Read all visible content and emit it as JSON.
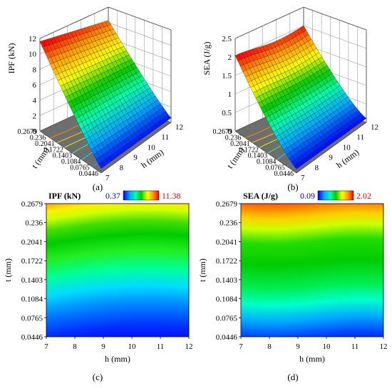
{
  "panels": {
    "a": "(a)",
    "b": "(b)",
    "c": "(c)",
    "d": "(d)"
  },
  "colors": {
    "jet": [
      "#0000ff",
      "#00aaff",
      "#00ffaa",
      "#00cc00",
      "#ffff00",
      "#ff9900",
      "#ff0000"
    ],
    "floor": "#6e6e6e",
    "min_text": "#0000cc",
    "max_text": "#ff0000"
  },
  "chart_data": [
    {
      "id": "a",
      "type": "surface3d",
      "zlabel": "IPF (kN)",
      "xlabel": "h (mm)",
      "ylabel": "t (mm)",
      "x_ticks": [
        "7",
        "8",
        "9",
        "10",
        "11",
        "12"
      ],
      "y_ticks": [
        "0.0446",
        "0.0765",
        "0.1084",
        "0.1403",
        "0.1722",
        "0.2041",
        "0.236",
        "0.2679"
      ],
      "z_ticks": [
        "0",
        "2",
        "4",
        "6",
        "8",
        "10",
        "12"
      ],
      "xlim": [
        7,
        12
      ],
      "ylim": [
        0.0446,
        0.2679
      ],
      "zlim": [
        0,
        12
      ],
      "z_min": 0.37,
      "z_max": 11.38
    },
    {
      "id": "b",
      "type": "surface3d",
      "zlabel": "SEA (J/g)",
      "xlabel": "h (mm)",
      "ylabel": "t (mm)",
      "x_ticks": [
        "7",
        "8",
        "9",
        "10",
        "11",
        "12"
      ],
      "y_ticks": [
        "0.0446",
        "0.0765",
        "0.1084",
        "0.1403",
        "0.1722",
        "0.2041",
        "0.236",
        "0.2679"
      ],
      "z_ticks": [
        "0",
        "0.5",
        "1",
        "1.5",
        "2",
        "2.5"
      ],
      "xlim": [
        7,
        12
      ],
      "ylim": [
        0.0446,
        0.2679
      ],
      "zlim": [
        0,
        2.5
      ],
      "z_min": 0.09,
      "z_max": 2.02
    },
    {
      "id": "c",
      "type": "heatmap",
      "legend_title": "IPF (kN)",
      "legend_min": "0.37",
      "legend_max": "11.38",
      "xlabel": "h (mm)",
      "ylabel": "t (mm)",
      "x_ticks": [
        "7",
        "8",
        "9",
        "10",
        "11",
        "12"
      ],
      "y_ticks": [
        "0.0446",
        "0.0765",
        "0.1084",
        "0.1403",
        "0.1722",
        "0.2041",
        "0.236",
        "0.2679"
      ],
      "xlim": [
        7,
        12
      ],
      "ylim": [
        0.0446,
        0.2679
      ]
    },
    {
      "id": "d",
      "type": "heatmap",
      "legend_title": "SEA (J/g)",
      "legend_min": "0.09",
      "legend_max": "2.02",
      "xlabel": "h (mm)",
      "ylabel": "t (mm)",
      "x_ticks": [
        "7",
        "8",
        "9",
        "10",
        "11",
        "12"
      ],
      "y_ticks": [
        "0.0446",
        "0.0765",
        "0.1084",
        "0.1403",
        "0.1722",
        "0.2041",
        "0.236",
        "0.2679"
      ],
      "xlim": [
        7,
        12
      ],
      "ylim": [
        0.0446,
        0.2679
      ]
    }
  ]
}
